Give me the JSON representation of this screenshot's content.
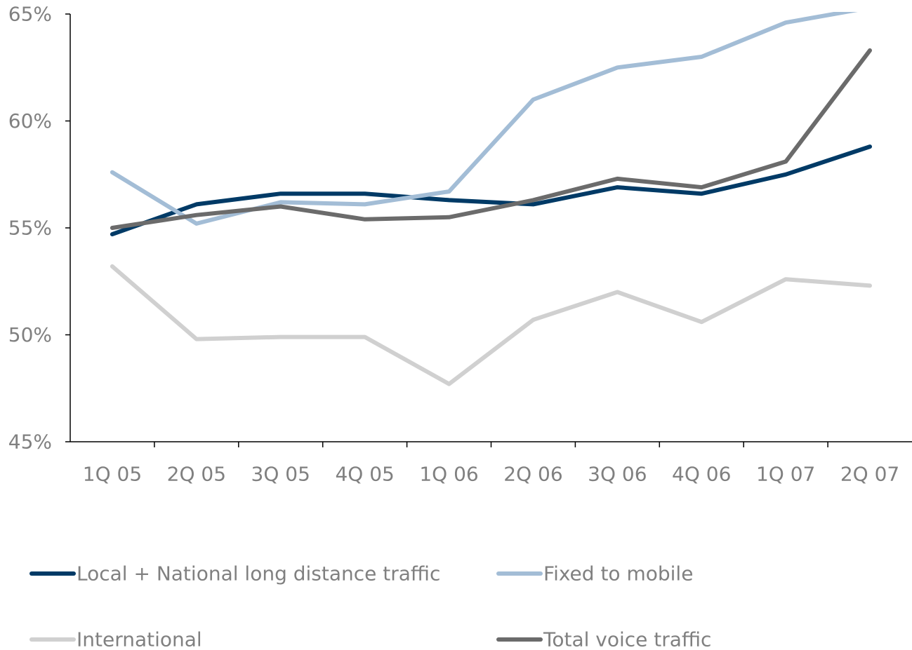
{
  "chart_data": {
    "type": "line",
    "title": "",
    "xlabel": "",
    "ylabel": "",
    "categories": [
      "1Q 05",
      "2Q 05",
      "3Q 05",
      "4Q 05",
      "1Q 06",
      "2Q 06",
      "3Q 06",
      "4Q 06",
      "1Q 07",
      "2Q 07"
    ],
    "ylim": [
      45,
      65
    ],
    "yticks": [
      45,
      50,
      55,
      60,
      65
    ],
    "ytick_labels": [
      "45%",
      "50%",
      "55%",
      "60%",
      "65%"
    ],
    "grid": false,
    "legend_position": "bottom",
    "series": [
      {
        "name": "Local + National long distance traffic",
        "color": "#003a66",
        "values": [
          54.7,
          56.1,
          56.6,
          56.6,
          56.3,
          56.1,
          56.9,
          56.6,
          57.5,
          58.8
        ]
      },
      {
        "name": "Fixed to mobile",
        "color": "#a3bdd6",
        "values": [
          57.6,
          55.2,
          56.2,
          56.1,
          56.7,
          61.0,
          62.5,
          63.0,
          64.6,
          65.3
        ]
      },
      {
        "name": "International",
        "color": "#d0d0d0",
        "values": [
          53.2,
          49.8,
          49.9,
          49.9,
          47.7,
          50.7,
          52.0,
          50.6,
          52.6,
          52.3
        ]
      },
      {
        "name": "Total voice traffic",
        "color": "#6b6b6b",
        "values": [
          55.0,
          55.6,
          56.0,
          55.4,
          55.5,
          56.3,
          57.3,
          56.9,
          58.1,
          63.3
        ]
      }
    ]
  }
}
